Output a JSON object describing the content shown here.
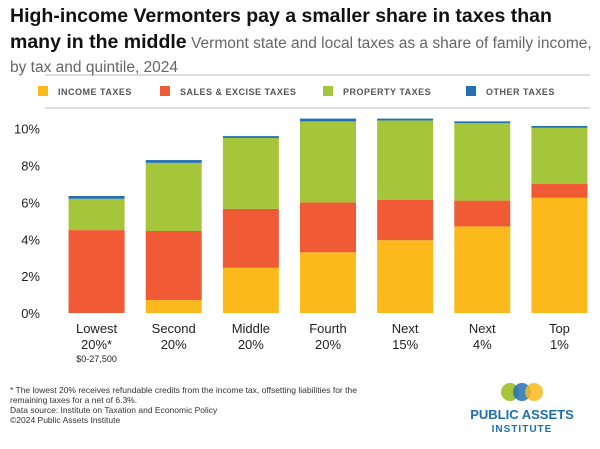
{
  "chart_data": {
    "type": "stacked_bar",
    "title": "High-income Vermonters pay a smaller share in taxes than many in the middle",
    "subtitle": "Vermont state and local taxes as a share of family income, by tax and quintile, 2024",
    "categories": [
      [
        "Lowest",
        "20%*"
      ],
      [
        "Second",
        "20%"
      ],
      [
        "Middle",
        "20%"
      ],
      [
        "Fourth",
        "20%"
      ],
      [
        "Next",
        "15%"
      ],
      [
        "Next",
        "4%"
      ],
      [
        "Top",
        "1%"
      ]
    ],
    "category_note": "$0-27,500",
    "series": [
      {
        "name": "INCOME TAXES",
        "color": "#fbb91b",
        "values": [
          0,
          0.7,
          2.45,
          3.3,
          3.95,
          4.7,
          6.25
        ]
      },
      {
        "name": "SALES & EXCISE TAXES",
        "color": "#f05a35",
        "values": [
          4.5,
          3.75,
          3.2,
          2.7,
          2.2,
          1.4,
          0.75
        ]
      },
      {
        "name": "PROPERTY TAXES",
        "color": "#a5c63b",
        "values": [
          1.7,
          3.7,
          3.85,
          4.4,
          4.3,
          4.2,
          3.05
        ]
      },
      {
        "name": "OTHER TAXES",
        "color": "#2470b5",
        "values": [
          0.15,
          0.15,
          0.1,
          0.15,
          0.1,
          0.1,
          0.1
        ]
      }
    ],
    "ylim": [
      0,
      10.8
    ],
    "yticks": [
      {
        "value": 0,
        "label": "0%"
      },
      {
        "value": 2,
        "label": "2%"
      },
      {
        "value": 4,
        "label": "4%"
      },
      {
        "value": 6,
        "label": "6%"
      },
      {
        "value": 8,
        "label": "8%"
      },
      {
        "value": 10,
        "label": "10%"
      }
    ],
    "footnote": [
      "* The lowest 20% receives refundable credits from the income tax, offsetting liabilities for the",
      "remaining taxes for a net of 6.3%."
    ],
    "source": "Data source: Institute on Taxation and Economic Policy",
    "copyright": "©2024 Public Assets Institute",
    "logo": [
      "PUBLIC ASSETS",
      "INSTITUTE"
    ]
  }
}
